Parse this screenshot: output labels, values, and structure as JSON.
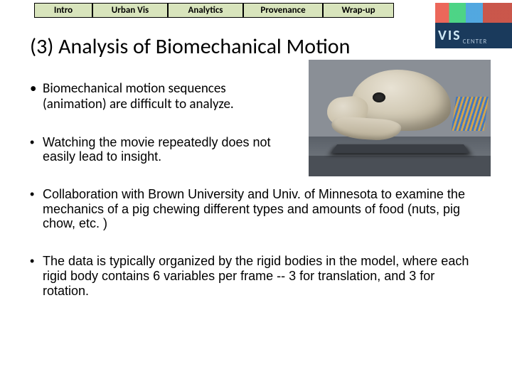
{
  "nav": {
    "tabs": [
      "Intro",
      "Urban Vis",
      "Analytics",
      "Provenance",
      "Wrap-up"
    ],
    "bg_color": "#d8e4bc",
    "border_color": "#000000"
  },
  "logo": {
    "text_main": "VIS",
    "text_sub": "CENTER",
    "bg_color": "#1a3a5c",
    "stripe_colors": [
      "#e84c3d",
      "#2ecc71",
      "#3498db",
      "#c0392b"
    ]
  },
  "title": "(3) Analysis of Biomechanical Motion",
  "bullets": [
    "Biomechanical motion sequences (animation) are difficult to analyze.",
    "Watching the movie repeatedly does not easily lead to insight.",
    "Collaboration with Brown University and Univ. of Minnesota to examine the mechanics of a pig chewing different types and amounts of food (nuts, pig chow, etc. )",
    "The data is typically organized by the rigid bodies in the model, where each rigid body contains 6 variables per frame -- 3 for translation, and 3 for rotation."
  ],
  "figure": {
    "description": "3D render of a pig skull on a dark stage",
    "bg_color": "#8a8f96",
    "skull_color": "#d4ccb8",
    "accent_colors": [
      "#3b76c4",
      "#d9a648"
    ]
  },
  "typography": {
    "title_fontsize": 30,
    "bullet_fontsize": 19,
    "tab_fontsize": 13
  }
}
